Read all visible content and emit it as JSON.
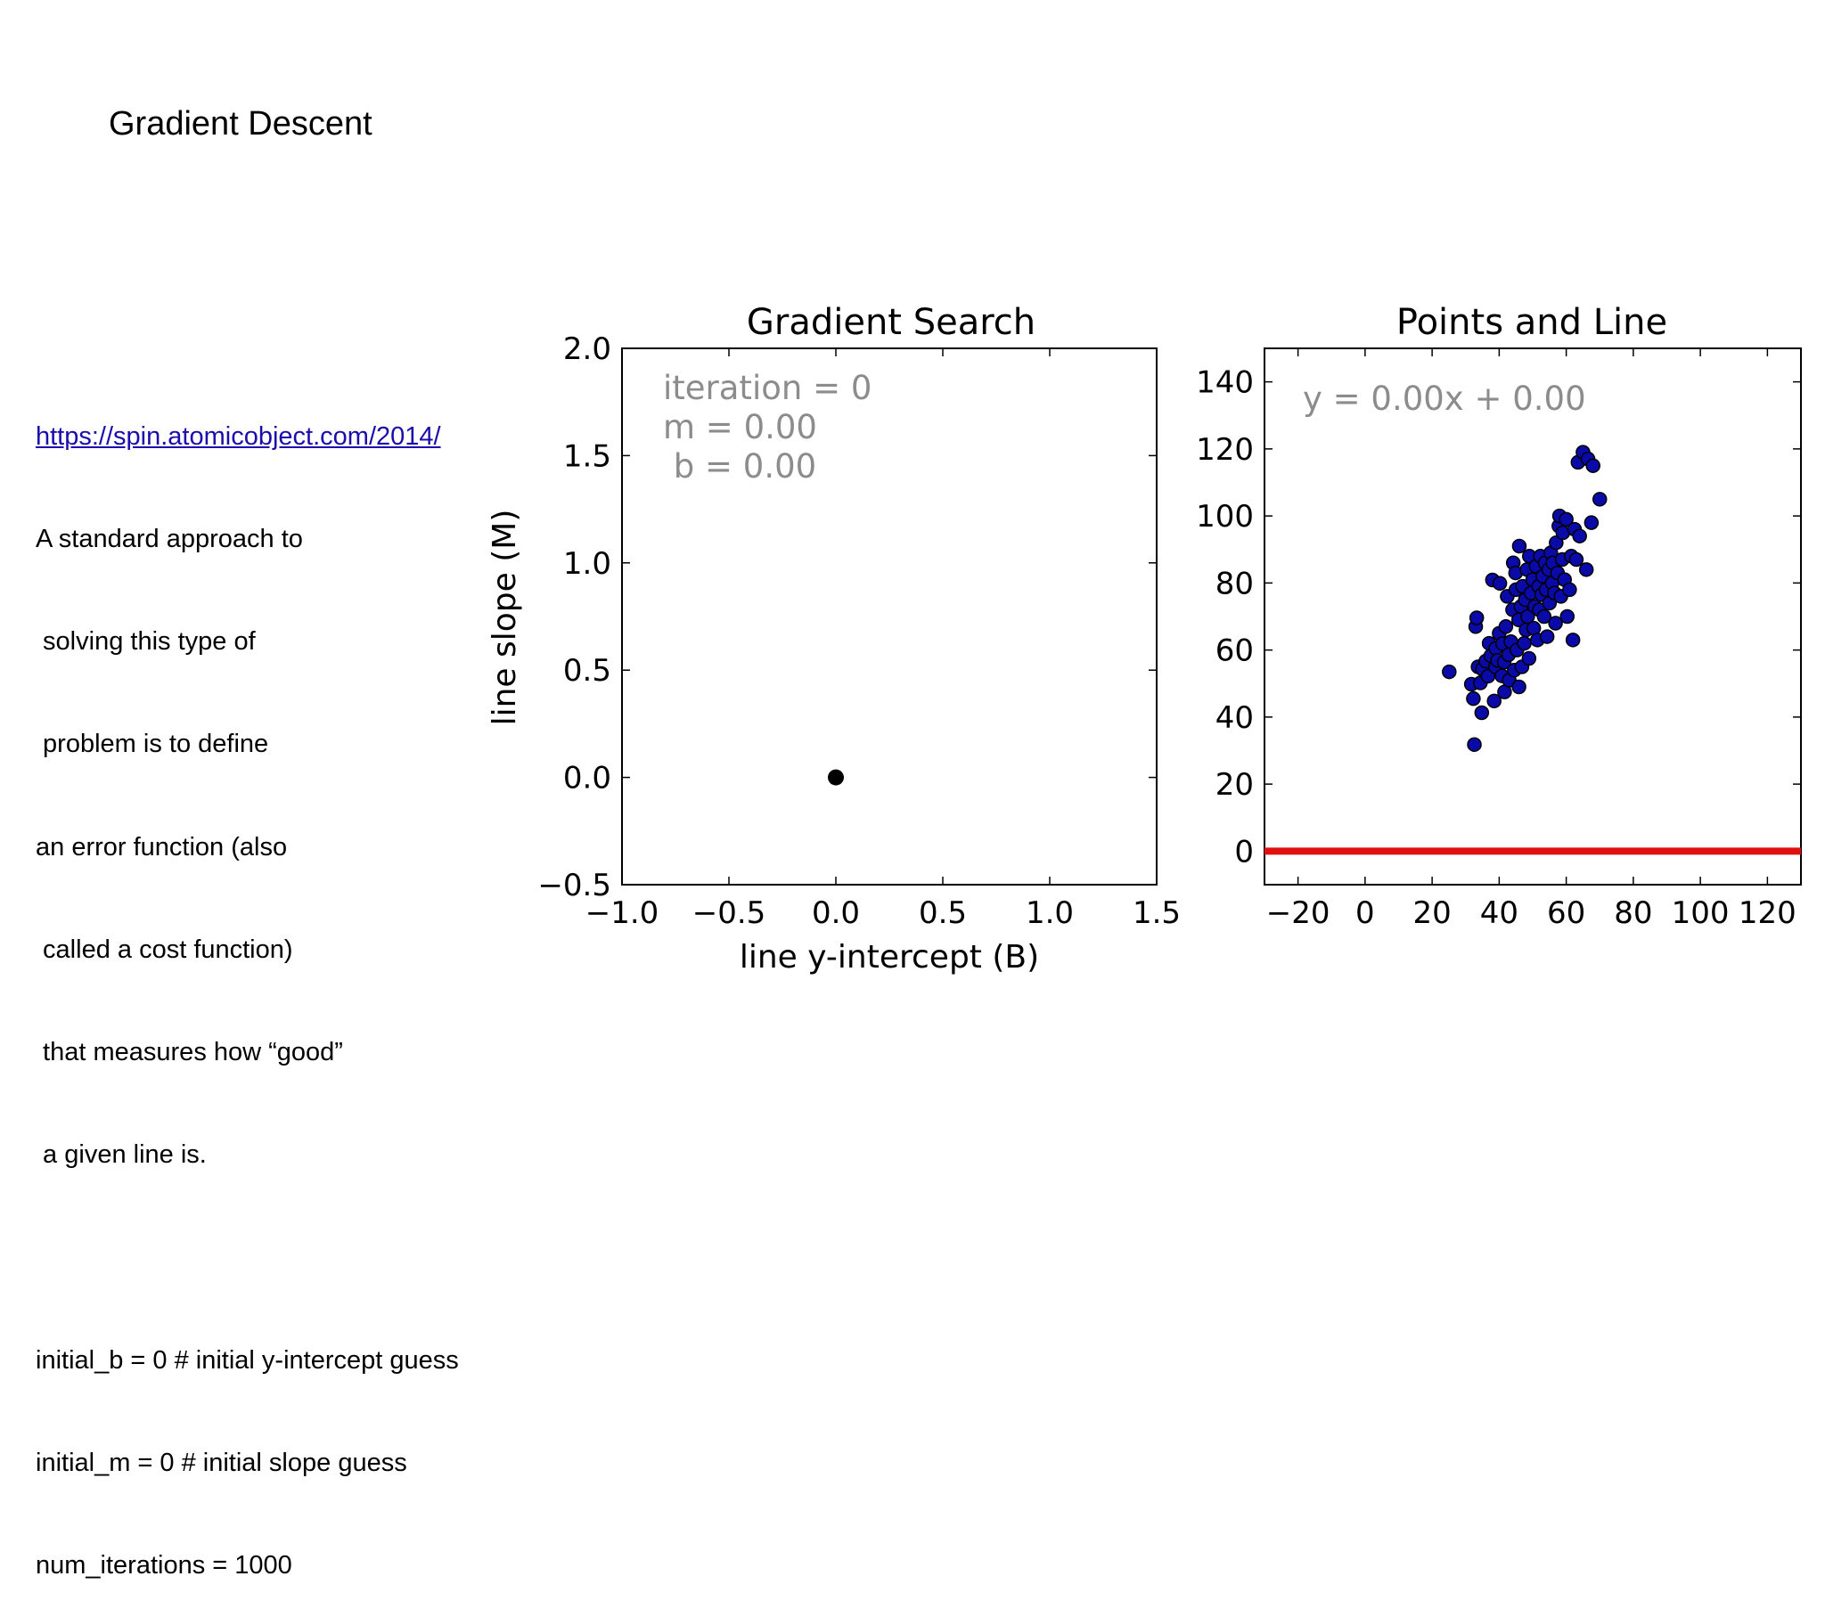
{
  "slide": {
    "title": "Gradient Descent",
    "link_text": "https://spin.atomicobject.com/2014/",
    "description_lines": [
      "A standard approach to",
      " solving this type of",
      " problem is to define",
      "an error function (also",
      " called a cost function)",
      " that measures how “good”",
      " a given line is."
    ],
    "code_lines": [
      "initial_b = 0 # initial y-intercept guess",
      "initial_m = 0 # initial slope guess",
      "num_iterations = 1000"
    ]
  },
  "colors": {
    "point_fill": "#0a0aa8",
    "point_edge": "#000000",
    "line": "#e01010",
    "search_point": "#000000",
    "annotation": "#8c8c8c"
  },
  "chart_data": [
    {
      "type": "scatter",
      "title": "Gradient Search",
      "xlabel": "line y-intercept (B)",
      "ylabel": "line slope (M)",
      "xlim": [
        -1.0,
        1.5
      ],
      "ylim": [
        -0.5,
        2.0
      ],
      "xticks": [
        "−1.0",
        "−0.5",
        "0.0",
        "0.5",
        "1.0",
        "1.5"
      ],
      "xtick_values": [
        -1.0,
        -0.5,
        0.0,
        0.5,
        1.0,
        1.5
      ],
      "yticks": [
        "−0.5",
        "0.0",
        "0.5",
        "1.0",
        "1.5",
        "2.0"
      ],
      "ytick_values": [
        -0.5,
        0.0,
        0.5,
        1.0,
        1.5,
        2.0
      ],
      "annotation_lines": [
        "iteration = 0",
        "m = 0.00",
        " b = 0.00"
      ],
      "points": [
        {
          "x": 0.0,
          "y": 0.0
        }
      ]
    },
    {
      "type": "scatter",
      "title": "Points and Line",
      "xlim": [
        -30,
        130
      ],
      "ylim": [
        -10,
        150
      ],
      "xticks": [
        "−20",
        "0",
        "20",
        "40",
        "60",
        "80",
        "100",
        "120"
      ],
      "xtick_values": [
        -20,
        0,
        20,
        40,
        60,
        80,
        100,
        120
      ],
      "yticks": [
        "0",
        "20",
        "40",
        "60",
        "80",
        "100",
        "120",
        "140"
      ],
      "ytick_values": [
        0,
        20,
        40,
        60,
        80,
        100,
        120,
        140
      ],
      "annotation": "y = 0.00x + 0.00",
      "line": {
        "slope": 0.0,
        "intercept": 0.0
      },
      "points": [
        [
          25.1,
          53.5
        ],
        [
          31.7,
          49.8
        ],
        [
          32.3,
          45.5
        ],
        [
          32.6,
          31.8
        ],
        [
          33.0,
          67.0
        ],
        [
          33.3,
          69.6
        ],
        [
          33.7,
          55.0
        ],
        [
          34.4,
          50.2
        ],
        [
          34.8,
          41.3
        ],
        [
          35.0,
          54.3
        ],
        [
          36.0,
          56.7
        ],
        [
          36.7,
          52.2
        ],
        [
          37.0,
          62.0
        ],
        [
          37.5,
          58.3
        ],
        [
          38.0,
          80.9
        ],
        [
          38.5,
          44.8
        ],
        [
          38.9,
          55.0
        ],
        [
          39.0,
          60.5
        ],
        [
          39.5,
          56.9
        ],
        [
          40.0,
          65.0
        ],
        [
          40.2,
          79.9
        ],
        [
          40.8,
          52.3
        ],
        [
          41.0,
          61.9
        ],
        [
          41.5,
          56.4
        ],
        [
          41.6,
          47.5
        ],
        [
          42.0,
          67.0
        ],
        [
          42.4,
          76.0
        ],
        [
          42.8,
          58.6
        ],
        [
          43.0,
          51.0
        ],
        [
          43.5,
          62.5
        ],
        [
          44.0,
          72.0
        ],
        [
          44.2,
          86.0
        ],
        [
          44.5,
          54.0
        ],
        [
          44.9,
          83.0
        ],
        [
          45.0,
          78.0
        ],
        [
          45.3,
          60.0
        ],
        [
          45.8,
          69.0
        ],
        [
          45.9,
          49.0
        ],
        [
          46.0,
          91.0
        ],
        [
          46.5,
          73.0
        ],
        [
          46.8,
          55.0
        ],
        [
          47.0,
          79.0
        ],
        [
          47.5,
          62.0
        ],
        [
          47.8,
          75.0
        ],
        [
          48.0,
          66.0
        ],
        [
          48.3,
          84.0
        ],
        [
          48.5,
          70.0
        ],
        [
          48.9,
          57.5
        ],
        [
          49.0,
          88.0
        ],
        [
          49.5,
          77.0
        ],
        [
          50.0,
          81.0
        ],
        [
          50.3,
          66.5
        ],
        [
          50.6,
          73.0
        ],
        [
          51.0,
          85.0
        ],
        [
          51.4,
          63.0
        ],
        [
          51.8,
          79.0
        ],
        [
          52.0,
          72.0
        ],
        [
          52.3,
          88.0
        ],
        [
          52.7,
          76.5
        ],
        [
          53.0,
          82.0
        ],
        [
          53.4,
          70.0
        ],
        [
          53.7,
          86.0
        ],
        [
          54.0,
          78.0
        ],
        [
          54.3,
          64.0
        ],
        [
          54.8,
          84.0
        ],
        [
          55.0,
          74.0
        ],
        [
          55.4,
          89.0
        ],
        [
          55.8,
          80.0
        ],
        [
          56.0,
          86.0
        ],
        [
          56.5,
          77.0
        ],
        [
          56.8,
          68.0
        ],
        [
          57.0,
          92.0
        ],
        [
          57.4,
          83.0
        ],
        [
          57.8,
          97.0
        ],
        [
          58.0,
          100.0
        ],
        [
          58.4,
          76.0
        ],
        [
          58.8,
          87.0
        ],
        [
          59.0,
          95.0
        ],
        [
          59.5,
          81.0
        ],
        [
          60.0,
          99.0
        ],
        [
          60.3,
          70.0
        ],
        [
          61.0,
          78.0
        ],
        [
          61.5,
          88.0
        ],
        [
          62.0,
          63.0
        ],
        [
          62.5,
          96.0
        ],
        [
          63.0,
          87.0
        ],
        [
          63.5,
          116.0
        ],
        [
          64.0,
          94.0
        ],
        [
          65.0,
          119.0
        ],
        [
          66.0,
          84.0
        ],
        [
          66.5,
          117.0
        ],
        [
          67.5,
          98.0
        ],
        [
          68.0,
          115.0
        ],
        [
          70.0,
          105.0
        ]
      ]
    }
  ]
}
